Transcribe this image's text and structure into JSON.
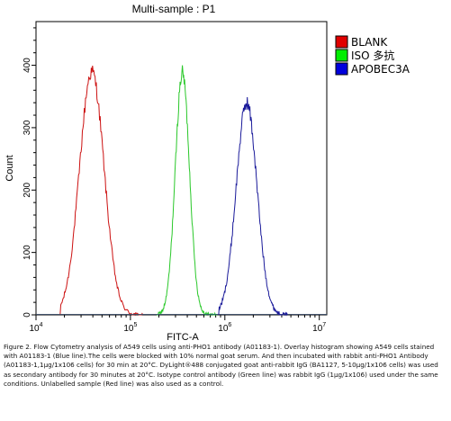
{
  "chart_data": {
    "type": "histogram",
    "title": "Multi-sample : P1",
    "xlabel": "FITC-A",
    "ylabel": "Count",
    "x_scale": "log",
    "xlim": [
      10000,
      12000000
    ],
    "ylim": [
      0,
      470
    ],
    "y_ticks": [
      0,
      100,
      200,
      300,
      400
    ],
    "x_ticks": [
      {
        "value": 10000,
        "base": "10",
        "exp": "4"
      },
      {
        "value": 100000,
        "base": "10",
        "exp": "5"
      },
      {
        "value": 1000000,
        "base": "10",
        "exp": "6"
      },
      {
        "value": 10000000,
        "base": "10",
        "exp": "7"
      }
    ],
    "legend_position": "top-right",
    "series": [
      {
        "name": "BLANK",
        "color": "#e00000",
        "stroke": "#cc1010",
        "peak_x": 39000,
        "peak_y": 390,
        "log_sd": 0.13,
        "start": 18000,
        "end": 135000
      },
      {
        "name": "ISO 多抗",
        "color": "#00ee00",
        "stroke": "#2ac82a",
        "peak_x": 355000,
        "peak_y": 388,
        "log_sd": 0.075,
        "start": 190000,
        "end": 830000
      },
      {
        "name": "APOBEC3A",
        "color": "#0000dd",
        "stroke": "#1a1a9a",
        "peak_x": 1700000,
        "peak_y": 340,
        "log_sd": 0.11,
        "start": 860000,
        "end": 4600000
      }
    ]
  },
  "caption": "Figure 2. Flow Cytometry analysis of A549 cells using anti-PHO1 antibody (A01183-1). Overlay histogram showing A549 cells stained with A01183-1 (Blue line).The cells were blocked with 10% normal goat serum. And then incubated with rabbit anti-PHO1 Antibody (A01183-1,1μg/1x106 cells) for 30 min at 20°C. DyLight®488 conjugated goat anti-rabbit IgG (BA1127, 5-10μg/1x106 cells) was used as secondary antibody for 30 minutes at 20°C. Isotype control antibody (Green line) was rabbit IgG (1μg/1x106) used under the same conditions. Unlabelled sample (Red line) was also used as a control."
}
